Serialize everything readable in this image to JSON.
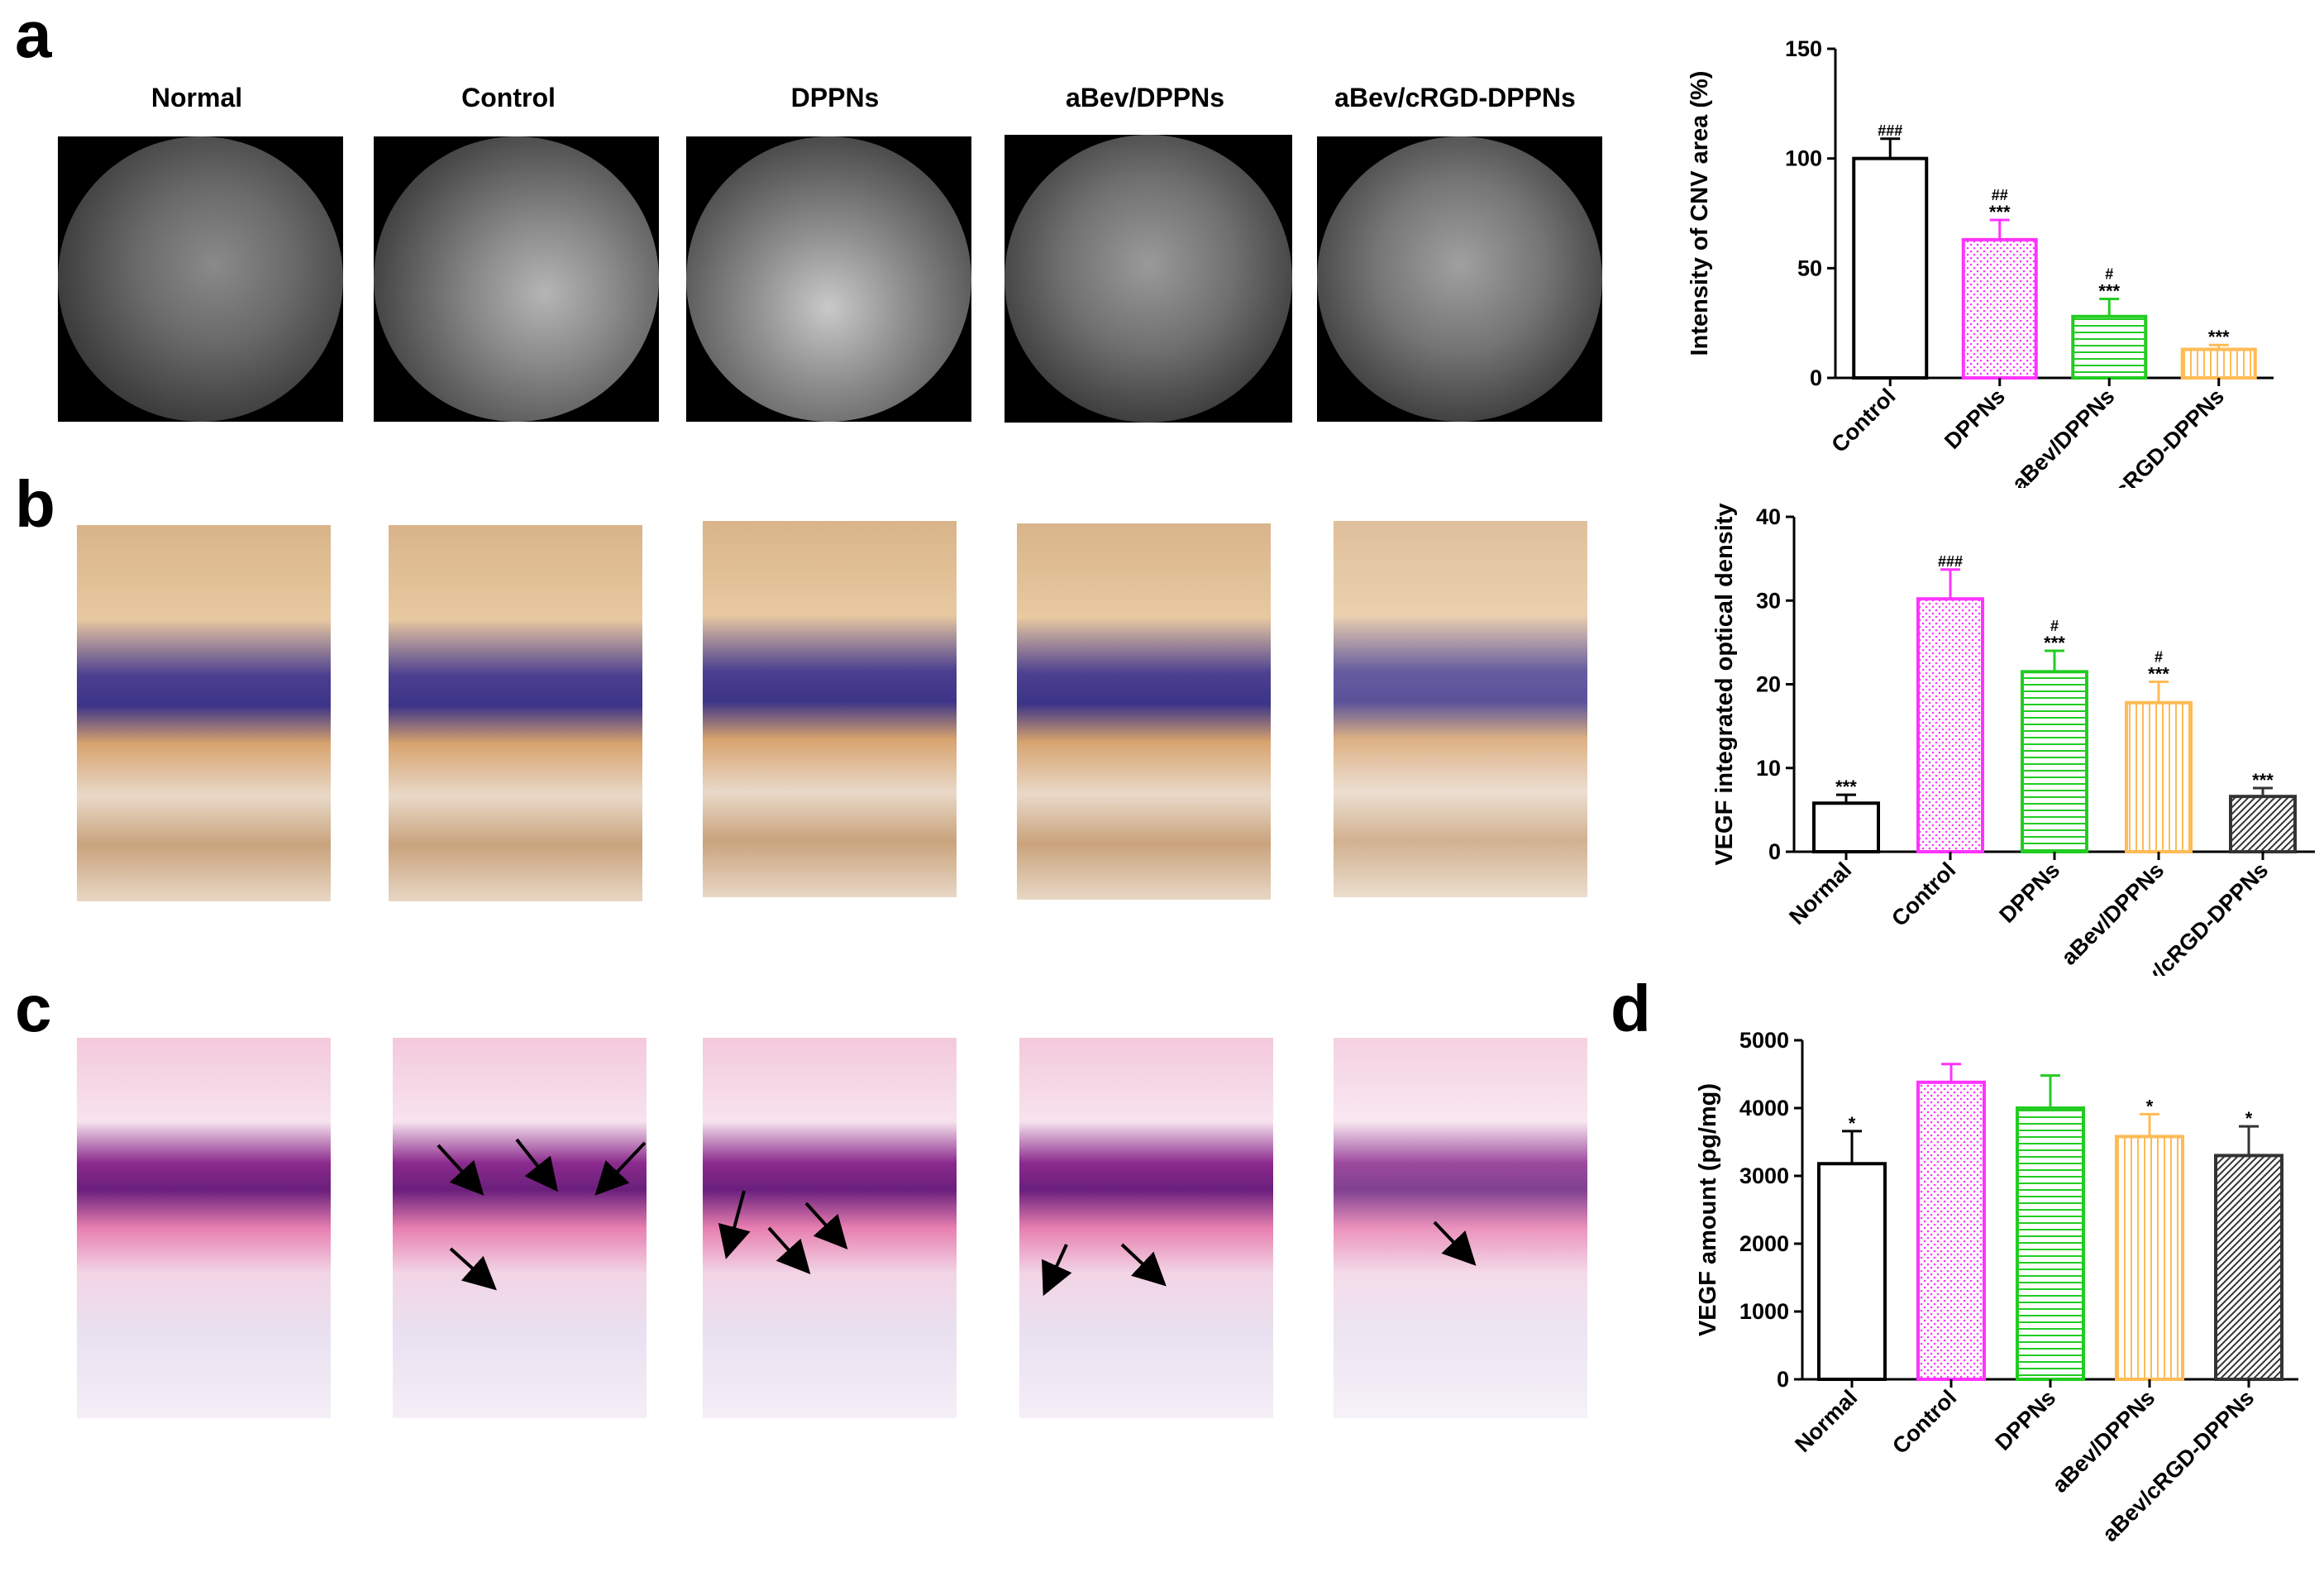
{
  "panels": {
    "a": "a",
    "b": "b",
    "c": "c",
    "d": "d"
  },
  "groups": [
    "Normal",
    "Control",
    "DPPNs",
    "aBev/DPPNs",
    "aBev/cRGD-DPPNs"
  ],
  "fundus_scale_labels": [
    "",
    "",
    "",
    "",
    ""
  ],
  "chart_data": [
    {
      "type": "bar",
      "panel": "a",
      "ylabel": "Intensity of CNV area (%)",
      "ylim": [
        0,
        150
      ],
      "yticks": [
        0,
        50,
        100,
        150
      ],
      "categories": [
        "Control",
        "DPPNs",
        "aBev/DPPNs",
        "aBev/cRGD-DPPNs"
      ],
      "values": [
        100,
        63,
        28,
        13
      ],
      "errors": [
        9,
        9,
        8,
        2
      ],
      "stars": [
        "",
        "***",
        "***",
        "***"
      ],
      "hashes": [
        "###",
        "##",
        "#",
        ""
      ],
      "colors": [
        "#000000",
        "#ff33ff",
        "#22cc22",
        "#ffbb55"
      ],
      "patterns": [
        "none",
        "dots",
        "hlines",
        "vlines"
      ]
    },
    {
      "type": "bar",
      "panel": "b",
      "ylabel": "VEGF integrated optical density",
      "ylim": [
        0,
        40
      ],
      "yticks": [
        0,
        10,
        20,
        30,
        40
      ],
      "categories": [
        "Normal",
        "Control",
        "DPPNs",
        "aBev/DPPNs",
        "aBev/cRGD-DPPNs"
      ],
      "values": [
        5.8,
        30.2,
        21.5,
        17.8,
        6.6
      ],
      "errors": [
        1.0,
        3.5,
        2.5,
        2.5,
        1.0
      ],
      "stars": [
        "***",
        "",
        "***",
        "***",
        "***"
      ],
      "hashes": [
        "",
        "###",
        "#",
        "#",
        ""
      ],
      "colors": [
        "#000000",
        "#ff33ff",
        "#22cc22",
        "#ffbb55",
        "#333333"
      ],
      "patterns": [
        "none",
        "dots",
        "hlines",
        "vlines",
        "diag"
      ]
    },
    {
      "type": "bar",
      "panel": "d",
      "ylabel": "VEGF amount (pg/mg)",
      "ylim": [
        0,
        5000
      ],
      "yticks": [
        0,
        1000,
        2000,
        3000,
        4000,
        5000
      ],
      "categories": [
        "Normal",
        "Control",
        "DPPNs",
        "aBev/DPPNs",
        "aBev/cRGD-DPPNs"
      ],
      "values": [
        3180,
        4380,
        4000,
        3580,
        3300
      ],
      "errors": [
        480,
        270,
        480,
        330,
        430
      ],
      "stars": [
        "*",
        "",
        "",
        "*",
        "*"
      ],
      "hashes": [
        "",
        "",
        "",
        "",
        ""
      ],
      "colors": [
        "#000000",
        "#ff33ff",
        "#22cc22",
        "#ffbb55",
        "#333333"
      ],
      "patterns": [
        "none",
        "dots",
        "hlines",
        "vlines",
        "diag"
      ]
    }
  ]
}
